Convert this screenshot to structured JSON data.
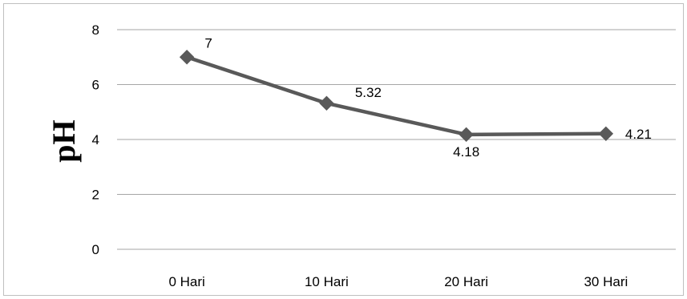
{
  "chart_data": {
    "type": "line",
    "title": "",
    "xlabel": "",
    "ylabel": "pH",
    "categories": [
      "0 Hari",
      "10 Hari",
      "20 Hari",
      "30 Hari"
    ],
    "series": [
      {
        "values": [
          7,
          5.32,
          4.18,
          4.21
        ],
        "data_labels": [
          "7",
          "5.32",
          "4.18",
          "4.21"
        ],
        "color": "#595959",
        "marker": "diamond"
      }
    ],
    "ylim": [
      0,
      8
    ],
    "yticks": [
      0,
      2,
      4,
      6,
      8
    ],
    "ytick_labels": [
      "0",
      "2",
      "4",
      "6",
      "8"
    ],
    "grid": true,
    "legend": "none",
    "colors": {
      "line": "#595959",
      "grid": "#a6a6a6",
      "border": "#bfbfbf"
    }
  }
}
